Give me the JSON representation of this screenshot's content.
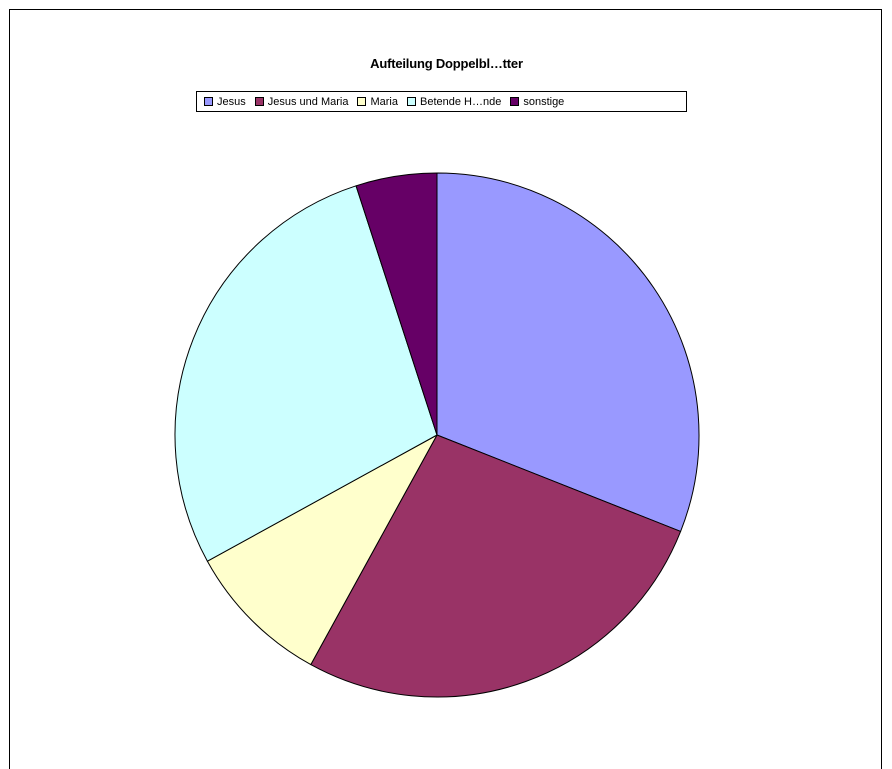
{
  "chart_data": {
    "type": "pie",
    "title": "Aufteilung Doppelbl…tter",
    "categories": [
      "Jesus",
      "Jesus und Maria",
      "Maria",
      "Betende H…nde",
      "sonstige"
    ],
    "values": [
      31,
      27,
      9,
      28,
      5
    ],
    "unit": "%",
    "colors": [
      "#9999FF",
      "#993366",
      "#FFFFCC",
      "#CCFFFF",
      "#660066"
    ],
    "legend_position": "top",
    "start_angle_deg": 0,
    "direction": "clockwise",
    "slice_border": "#000000"
  }
}
